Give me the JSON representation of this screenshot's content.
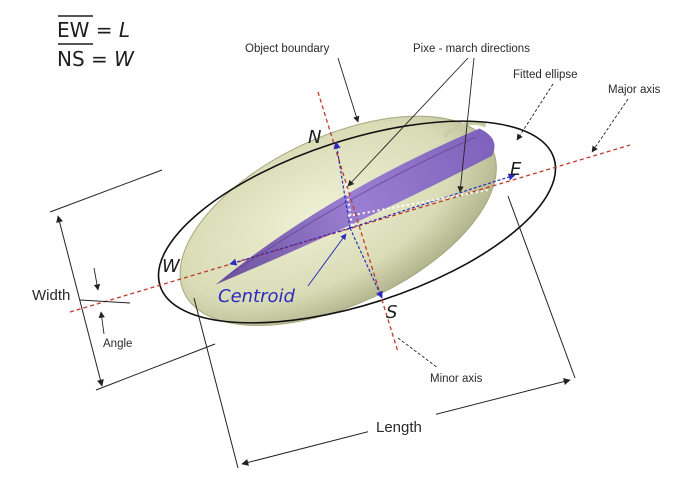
{
  "equations": {
    "line1": {
      "overbar": "EW",
      "eq": " = ",
      "var": "L"
    },
    "line2": {
      "overbar": "NS",
      "eq": " = ",
      "var": "W"
    }
  },
  "labels": {
    "object_boundary": "Object boundary",
    "pixel_march": "Pixe - march directions",
    "fitted_ellipse": "Fitted ellipse",
    "major_axis": "Major axis",
    "width": "Width",
    "angle": "Angle",
    "minor_axis": "Minor axis",
    "length": "Length",
    "centroid": "Centroid"
  },
  "compass": {
    "n": "N",
    "e": "E",
    "w": "W",
    "s": "S"
  },
  "colors": {
    "shell": "#d9dcb6",
    "shell_shade": "#b5b98f",
    "kernel": "#8d6fc4",
    "axis_red": "#c0392b",
    "march_blue": "#2b2bbf",
    "ellipse": "#111111"
  }
}
